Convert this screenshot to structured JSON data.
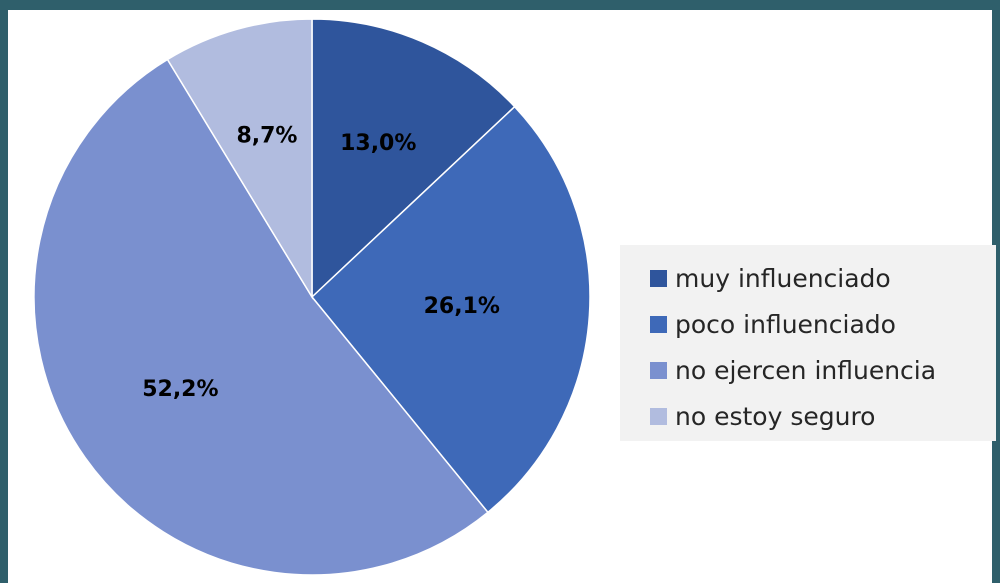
{
  "chart_data": {
    "type": "pie",
    "title": "",
    "categories": [
      "muy influenciado",
      "poco influenciado",
      "no ejercen influencia",
      "no estoy seguro"
    ],
    "values": [
      13.0,
      26.1,
      52.2,
      8.7
    ],
    "data_labels": [
      "13,0%",
      "26,1%",
      "52,2%",
      "8,7%"
    ],
    "colors": [
      "#2f559c",
      "#3e69b8",
      "#7a90cf",
      "#b1bcdf"
    ],
    "start_angle": "12 o'clock",
    "direction": "clockwise",
    "legend_placement": "right"
  }
}
